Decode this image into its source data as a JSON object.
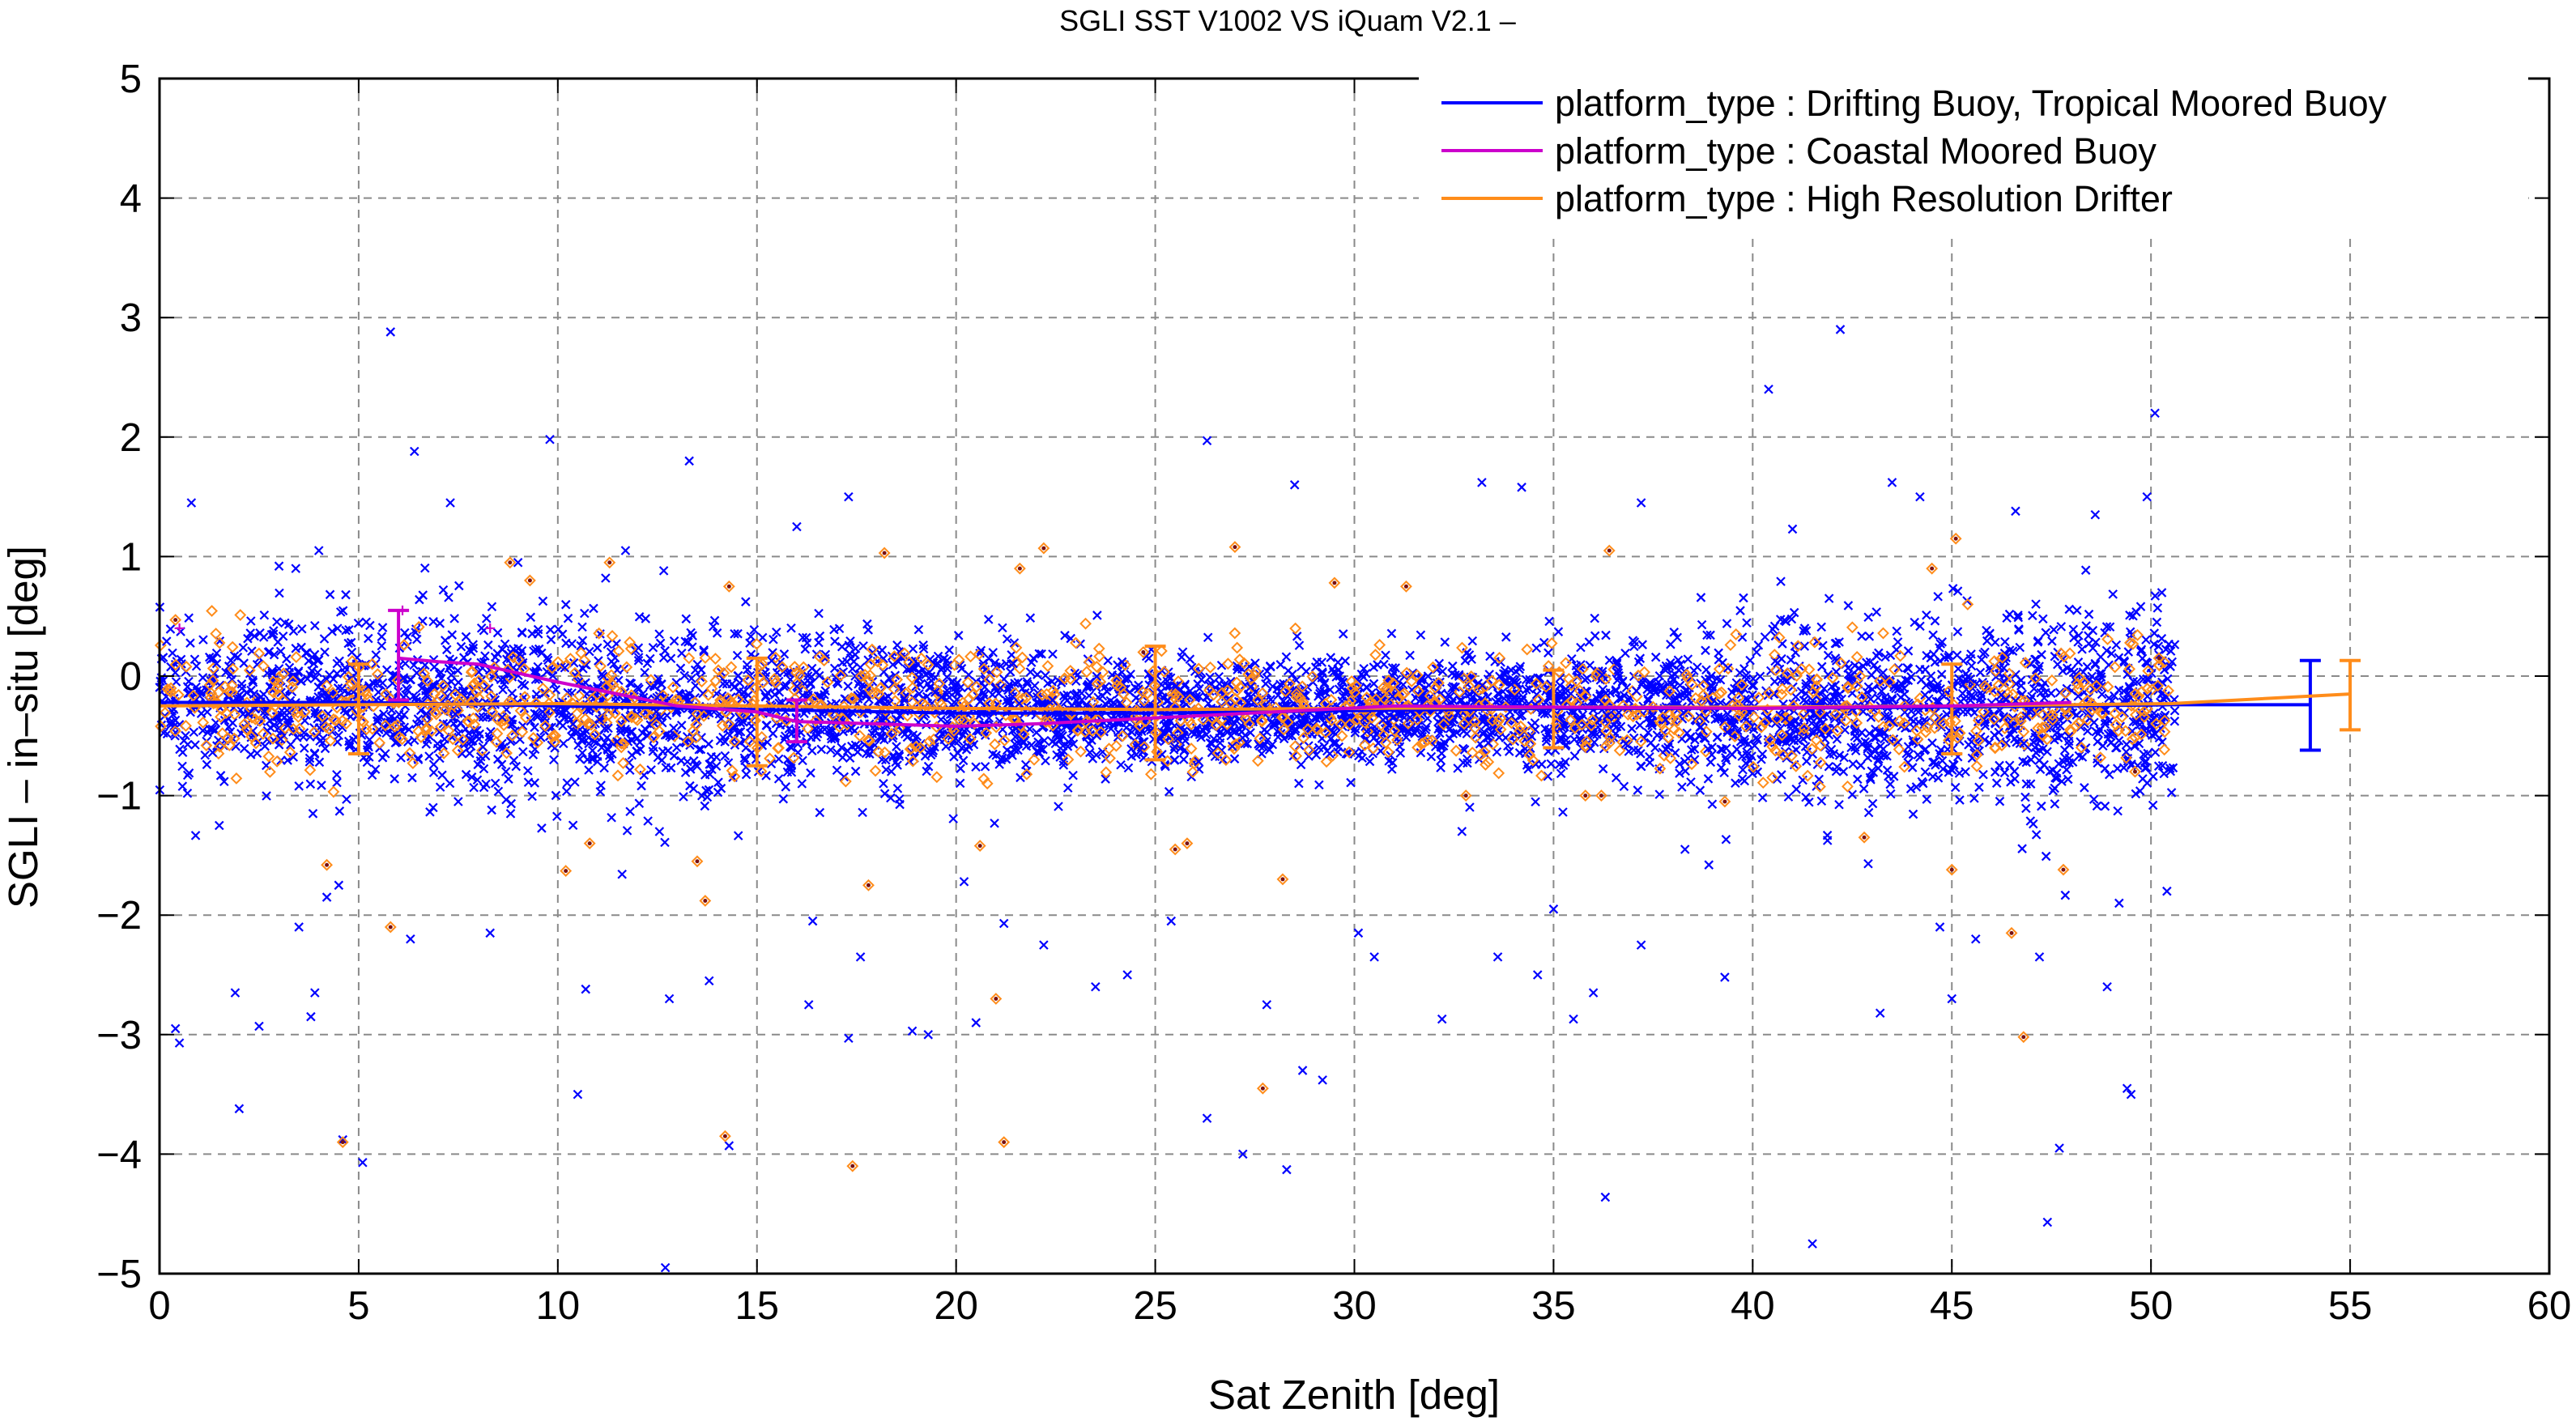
{
  "chart_data": {
    "type": "scatter",
    "title": "SGLI SST V1002 VS iQuam V2.1  –",
    "xlabel": "Sat Zenith [deg]",
    "ylabel": "SGLI – in–situ [deg]",
    "xlim": [
      0,
      60
    ],
    "ylim": [
      -5,
      5
    ],
    "x_ticks": [
      0,
      5,
      10,
      15,
      20,
      25,
      30,
      35,
      40,
      45,
      50,
      55,
      60
    ],
    "y_ticks": [
      -5,
      -4,
      -3,
      -2,
      -1,
      0,
      1,
      2,
      3,
      4,
      5
    ],
    "x_tick_labels": [
      "0",
      "5",
      "10",
      "15",
      "20",
      "25",
      "30",
      "35",
      "40",
      "45",
      "50",
      "55",
      "60"
    ],
    "y_tick_labels": [
      "−5",
      "−4",
      "−3",
      "−2",
      "−1",
      "0",
      "1",
      "2",
      "3",
      "4",
      "5"
    ],
    "grid": true,
    "legend_position": "top-right",
    "colors": {
      "drifting": "#0000ff",
      "coastal": "#cc00cc",
      "hrd": "#ff8c1a",
      "grid": "#8a8a8a"
    },
    "series": [
      {
        "name": "platform_type : Drifting Buoy, Tropical Moored Buoy",
        "color_key": "drifting",
        "marker": "x",
        "mean_line": {
          "x": [
            0,
            5,
            10,
            15,
            20,
            25,
            30,
            35,
            40,
            45,
            50.5,
            54
          ],
          "y": [
            -0.22,
            -0.22,
            -0.25,
            -0.28,
            -0.31,
            -0.31,
            -0.29,
            -0.27,
            -0.27,
            -0.26,
            -0.24,
            -0.24
          ]
        },
        "error_bars": [
          {
            "x": 54,
            "mean": -0.24,
            "low": -0.62,
            "high": 0.13
          }
        ],
        "outliers": [
          {
            "x": 0.8,
            "y": 1.45
          },
          {
            "x": 1.5,
            "y": -1.25
          },
          {
            "x": 1.9,
            "y": -2.65
          },
          {
            "x": 2.0,
            "y": -3.62
          },
          {
            "x": 2.5,
            "y": -2.93
          },
          {
            "x": 0.4,
            "y": -2.95
          },
          {
            "x": 0.5,
            "y": -3.07
          },
          {
            "x": 3.0,
            "y": 0.92
          },
          {
            "x": 3.5,
            "y": -2.1
          },
          {
            "x": 3.8,
            "y": -2.85
          },
          {
            "x": 3.9,
            "y": -2.65
          },
          {
            "x": 4.0,
            "y": 1.05
          },
          {
            "x": 4.2,
            "y": -1.85
          },
          {
            "x": 4.5,
            "y": -1.75
          },
          {
            "x": 4.6,
            "y": -3.88
          },
          {
            "x": 5.1,
            "y": -4.07
          },
          {
            "x": 5.8,
            "y": 2.88
          },
          {
            "x": 6.4,
            "y": 1.88
          },
          {
            "x": 6.3,
            "y": -2.2
          },
          {
            "x": 7.3,
            "y": 1.45
          },
          {
            "x": 7.5,
            "y": -1.05
          },
          {
            "x": 8.3,
            "y": -2.15
          },
          {
            "x": 9.0,
            "y": 0.95
          },
          {
            "x": 9.8,
            "y": 1.98
          },
          {
            "x": 10.5,
            "y": -3.5
          },
          {
            "x": 10.7,
            "y": -2.62
          },
          {
            "x": 11.2,
            "y": 0.82
          },
          {
            "x": 11.7,
            "y": 1.05
          },
          {
            "x": 12.7,
            "y": -4.95
          },
          {
            "x": 12.8,
            "y": -2.7
          },
          {
            "x": 13.3,
            "y": 1.8
          },
          {
            "x": 13.8,
            "y": -2.55
          },
          {
            "x": 14.3,
            "y": -3.93
          },
          {
            "x": 16.0,
            "y": 1.25
          },
          {
            "x": 16.4,
            "y": -2.05
          },
          {
            "x": 16.3,
            "y": -2.75
          },
          {
            "x": 17.3,
            "y": 1.5
          },
          {
            "x": 17.3,
            "y": -3.03
          },
          {
            "x": 17.6,
            "y": -2.35
          },
          {
            "x": 18.9,
            "y": -2.97
          },
          {
            "x": 19.3,
            "y": -3.0
          },
          {
            "x": 20.5,
            "y": -2.9
          },
          {
            "x": 21.2,
            "y": -2.07
          },
          {
            "x": 22.2,
            "y": -2.25
          },
          {
            "x": 23.5,
            "y": -2.6
          },
          {
            "x": 24.3,
            "y": -2.5
          },
          {
            "x": 25.4,
            "y": -2.05
          },
          {
            "x": 26.3,
            "y": 1.97
          },
          {
            "x": 26.3,
            "y": -3.7
          },
          {
            "x": 27.2,
            "y": -4.0
          },
          {
            "x": 27.8,
            "y": -2.75
          },
          {
            "x": 28.3,
            "y": -4.13
          },
          {
            "x": 28.5,
            "y": 1.6
          },
          {
            "x": 28.7,
            "y": -3.3
          },
          {
            "x": 29.2,
            "y": -3.38
          },
          {
            "x": 30.1,
            "y": -2.15
          },
          {
            "x": 30.5,
            "y": -2.35
          },
          {
            "x": 32.2,
            "y": -2.87
          },
          {
            "x": 33.2,
            "y": 1.62
          },
          {
            "x": 34.2,
            "y": 1.58
          },
          {
            "x": 34.6,
            "y": -2.5
          },
          {
            "x": 35.0,
            "y": -1.95
          },
          {
            "x": 35.5,
            "y": -2.87
          },
          {
            "x": 36.0,
            "y": -2.65
          },
          {
            "x": 36.3,
            "y": -4.36
          },
          {
            "x": 37.2,
            "y": 1.45
          },
          {
            "x": 37.2,
            "y": -2.25
          },
          {
            "x": 38.9,
            "y": -1.58
          },
          {
            "x": 39.3,
            "y": -2.52
          },
          {
            "x": 40.4,
            "y": 2.4
          },
          {
            "x": 41.0,
            "y": 1.23
          },
          {
            "x": 41.5,
            "y": -4.75
          },
          {
            "x": 42.2,
            "y": 2.9
          },
          {
            "x": 42.9,
            "y": -1.57
          },
          {
            "x": 43.2,
            "y": -2.82
          },
          {
            "x": 43.5,
            "y": 1.62
          },
          {
            "x": 44.2,
            "y": 1.5
          },
          {
            "x": 44.7,
            "y": -2.1
          },
          {
            "x": 45.0,
            "y": -2.7
          },
          {
            "x": 45.6,
            "y": -2.2
          },
          {
            "x": 46.6,
            "y": 1.38
          },
          {
            "x": 47.2,
            "y": -2.35
          },
          {
            "x": 47.4,
            "y": -4.57
          },
          {
            "x": 47.7,
            "y": -3.95
          },
          {
            "x": 48.6,
            "y": 1.35
          },
          {
            "x": 49.2,
            "y": -1.9
          },
          {
            "x": 49.5,
            "y": -3.5
          },
          {
            "x": 49.9,
            "y": 1.5
          },
          {
            "x": 50.1,
            "y": 2.2
          },
          {
            "x": 50.4,
            "y": -1.8
          },
          {
            "x": 48.9,
            "y": -2.6
          },
          {
            "x": 49.4,
            "y": -3.45
          },
          {
            "x": 32.7,
            "y": -1.3
          },
          {
            "x": 38.3,
            "y": -1.45
          },
          {
            "x": 33.6,
            "y": -2.35
          },
          {
            "x": 20.2,
            "y": -1.72
          }
        ]
      },
      {
        "name": "platform_type : Coastal Moored Buoy",
        "color_key": "coastal",
        "marker": "+",
        "mean_line": {
          "x": [
            6,
            7,
            8,
            10,
            13,
            15,
            16,
            18,
            20,
            22,
            25,
            28,
            31,
            35,
            40,
            45,
            48
          ],
          "y": [
            0.15,
            0.12,
            0.1,
            -0.05,
            -0.25,
            -0.3,
            -0.38,
            -0.4,
            -0.42,
            -0.4,
            -0.35,
            -0.3,
            -0.25,
            -0.26,
            -0.27,
            -0.25,
            -0.22
          ]
        },
        "error_bars": [
          {
            "x": 6,
            "mean": 0.15,
            "low": -0.2,
            "high": 0.55
          },
          {
            "x": 16,
            "mean": -0.38,
            "low": -0.55,
            "high": -0.2
          }
        ],
        "outliers": [
          {
            "x": 0.5,
            "y": 0.4
          },
          {
            "x": 8.3,
            "y": 0.4
          },
          {
            "x": 6.1,
            "y": 0.55
          }
        ]
      },
      {
        "name": "platform_type : High Resolution Drifter",
        "color_key": "hrd",
        "marker": "diamond",
        "mean_line": {
          "x": [
            0,
            5,
            10,
            15,
            20,
            25,
            30,
            35,
            40,
            45,
            50.5,
            55
          ],
          "y": [
            -0.25,
            -0.24,
            -0.23,
            -0.25,
            -0.27,
            -0.28,
            -0.27,
            -0.26,
            -0.26,
            -0.25,
            -0.23,
            -0.15
          ]
        },
        "error_bars": [
          {
            "x": 5,
            "mean": -0.24,
            "low": -0.65,
            "high": 0.1
          },
          {
            "x": 15,
            "mean": -0.25,
            "low": -0.75,
            "high": 0.15
          },
          {
            "x": 25,
            "mean": -0.28,
            "low": -0.7,
            "high": 0.25
          },
          {
            "x": 35,
            "mean": -0.26,
            "low": -0.6,
            "high": 0.05
          },
          {
            "x": 45,
            "mean": -0.25,
            "low": -0.65,
            "high": 0.1
          },
          {
            "x": 55,
            "mean": -0.15,
            "low": -0.45,
            "high": 0.13
          }
        ],
        "outliers": [
          {
            "x": 0.4,
            "y": 0.47
          },
          {
            "x": 4.2,
            "y": -1.58
          },
          {
            "x": 4.6,
            "y": -3.9
          },
          {
            "x": 5.8,
            "y": -2.1
          },
          {
            "x": 8.8,
            "y": 0.95
          },
          {
            "x": 9.3,
            "y": 0.8
          },
          {
            "x": 10.2,
            "y": -1.63
          },
          {
            "x": 10.8,
            "y": -1.4
          },
          {
            "x": 11.3,
            "y": 0.95
          },
          {
            "x": 13.5,
            "y": -1.55
          },
          {
            "x": 13.7,
            "y": -1.88
          },
          {
            "x": 14.3,
            "y": 0.75
          },
          {
            "x": 14.2,
            "y": -3.85
          },
          {
            "x": 17.4,
            "y": -4.1
          },
          {
            "x": 17.8,
            "y": -1.75
          },
          {
            "x": 18.2,
            "y": 1.03
          },
          {
            "x": 20.6,
            "y": -1.42
          },
          {
            "x": 21.0,
            "y": -2.7
          },
          {
            "x": 21.2,
            "y": -3.9
          },
          {
            "x": 21.6,
            "y": 0.9
          },
          {
            "x": 22.2,
            "y": 1.07
          },
          {
            "x": 24.7,
            "y": 0.2
          },
          {
            "x": 25.5,
            "y": -1.45
          },
          {
            "x": 25.8,
            "y": -1.4
          },
          {
            "x": 27.0,
            "y": 1.08
          },
          {
            "x": 27.7,
            "y": -3.45
          },
          {
            "x": 28.2,
            "y": -1.7
          },
          {
            "x": 29.5,
            "y": 0.78
          },
          {
            "x": 31.3,
            "y": 0.75
          },
          {
            "x": 32.8,
            "y": -1.0
          },
          {
            "x": 35.8,
            "y": -1.0
          },
          {
            "x": 36.2,
            "y": -1.0
          },
          {
            "x": 36.4,
            "y": 1.05
          },
          {
            "x": 39.3,
            "y": -1.05
          },
          {
            "x": 42.8,
            "y": -1.35
          },
          {
            "x": 44.5,
            "y": 0.9
          },
          {
            "x": 45.1,
            "y": 1.15
          },
          {
            "x": 45.0,
            "y": -1.62
          },
          {
            "x": 46.5,
            "y": -2.15
          },
          {
            "x": 46.8,
            "y": -3.02
          },
          {
            "x": 47.8,
            "y": -1.62
          },
          {
            "x": 49.6,
            "y": -0.8
          },
          {
            "x": 50.2,
            "y": 0.15
          }
        ]
      }
    ]
  }
}
